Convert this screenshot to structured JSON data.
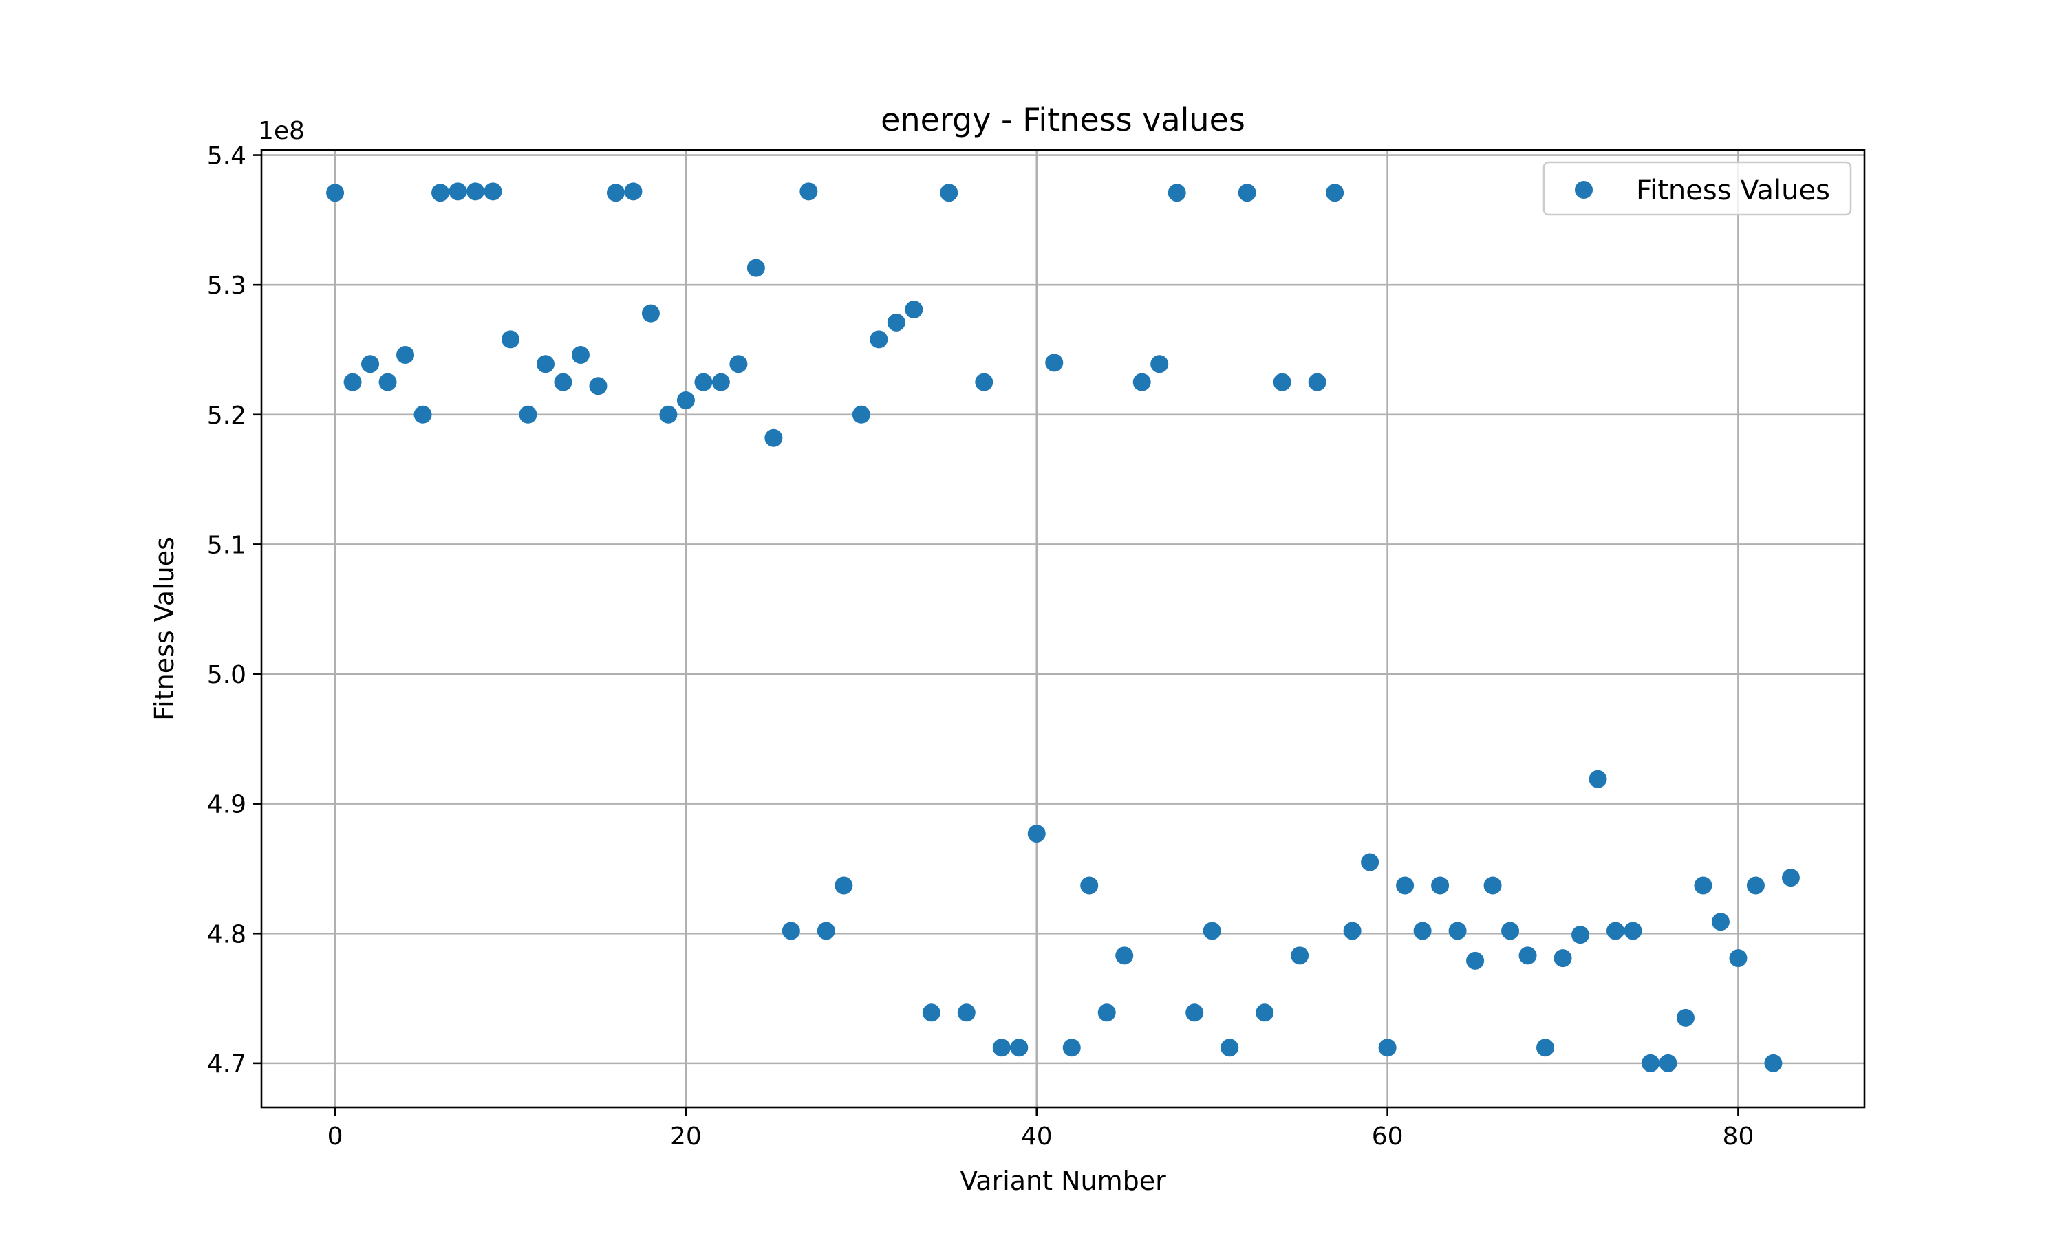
{
  "chart_data": {
    "type": "scatter",
    "title": "energy - Fitness values",
    "xlabel": "Variant Number",
    "ylabel": "Fitness Values",
    "y_offset_label": "1e8",
    "xlim": [
      -4.2,
      87.2
    ],
    "ylim": [
      4.666,
      5.404
    ],
    "xticks": [
      0,
      20,
      40,
      60,
      80
    ],
    "yticks": [
      4.7,
      4.8,
      4.9,
      5.0,
      5.1,
      5.2,
      5.3,
      5.4
    ],
    "ytick_labels": [
      "4.7",
      "4.8",
      "4.9",
      "5.0",
      "5.1",
      "5.2",
      "5.3",
      "5.4"
    ],
    "grid": true,
    "legend_position": "top-right",
    "colors": {
      "points": "#1f77b4",
      "grid": "#b0b0b0",
      "axes": "#000000"
    },
    "series": [
      {
        "name": "Fitness Values",
        "x": [
          0,
          1,
          2,
          3,
          4,
          5,
          6,
          7,
          8,
          9,
          10,
          11,
          12,
          13,
          14,
          15,
          16,
          17,
          18,
          19,
          20,
          21,
          22,
          23,
          24,
          25,
          26,
          27,
          28,
          29,
          30,
          31,
          32,
          33,
          34,
          35,
          36,
          37,
          38,
          39,
          40,
          41,
          42,
          43,
          44,
          45,
          46,
          47,
          48,
          49,
          50,
          51,
          52,
          53,
          54,
          55,
          56,
          57,
          58,
          59,
          60,
          61,
          62,
          63,
          64,
          65,
          66,
          67,
          68,
          69,
          70,
          71,
          72,
          73,
          74,
          75,
          76,
          77,
          78,
          79,
          80,
          81,
          82,
          83
        ],
        "y": [
          5.371,
          5.225,
          5.239,
          5.225,
          5.246,
          5.2,
          5.371,
          5.372,
          5.372,
          5.372,
          5.258,
          5.2,
          5.239,
          5.225,
          5.246,
          5.222,
          5.371,
          5.372,
          5.278,
          5.2,
          5.211,
          5.225,
          5.225,
          5.239,
          5.313,
          5.182,
          4.802,
          5.372,
          4.802,
          4.837,
          5.2,
          5.258,
          5.271,
          5.281,
          4.739,
          5.371,
          4.739,
          5.225,
          4.712,
          4.712,
          4.877,
          5.24,
          4.712,
          4.837,
          4.739,
          4.783,
          5.225,
          5.239,
          5.371,
          4.739,
          4.802,
          4.712,
          5.371,
          4.739,
          5.225,
          4.783,
          5.225,
          5.371,
          4.802,
          4.855,
          4.712,
          4.837,
          4.802,
          4.837,
          4.802,
          4.779,
          4.837,
          4.802,
          4.783,
          4.712,
          4.781,
          4.799,
          4.919,
          4.802,
          4.802,
          4.7,
          4.7,
          4.735,
          4.837,
          4.809,
          4.781,
          4.837,
          4.7,
          4.843
        ]
      }
    ]
  }
}
